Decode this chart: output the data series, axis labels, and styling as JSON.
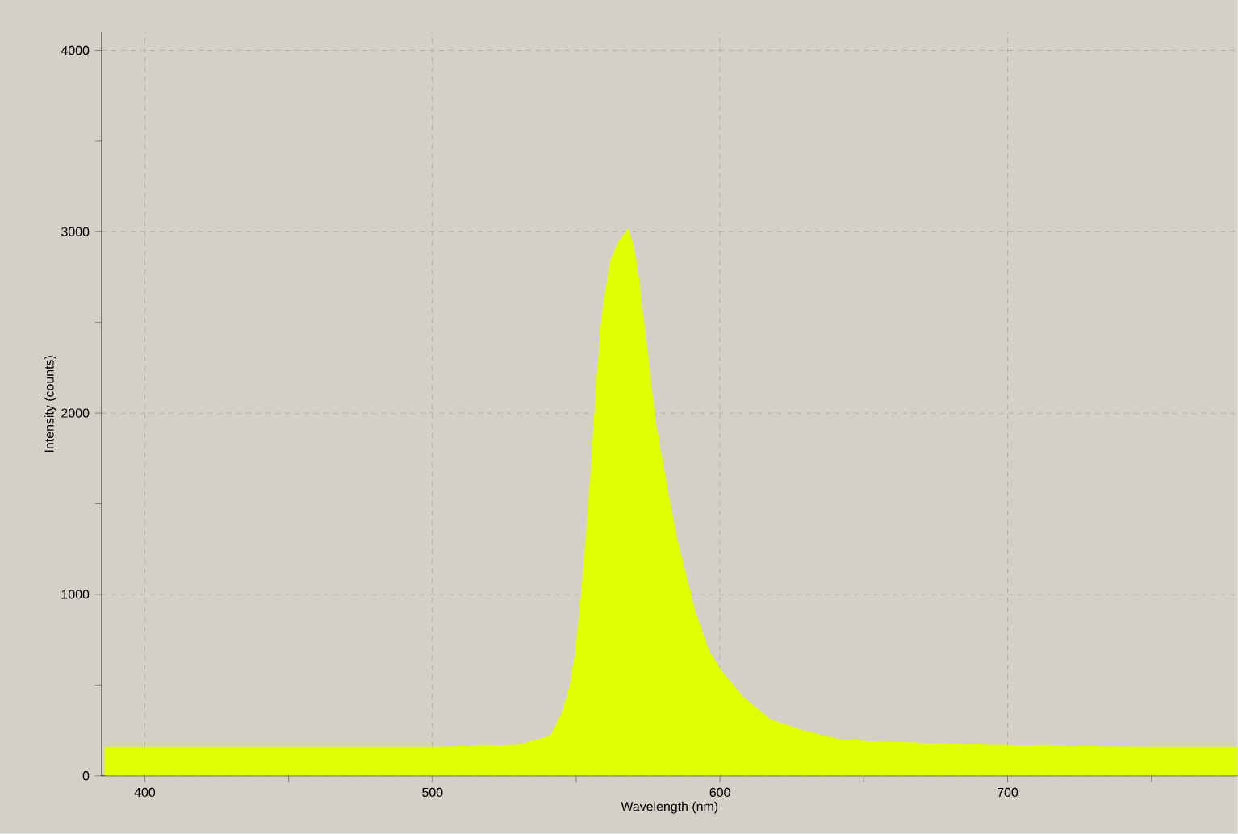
{
  "chart_data": {
    "type": "area",
    "xlabel": "Wavelength (nm)",
    "ylabel": "Intensity (counts)",
    "x": [
      386,
      400,
      450,
      500,
      530,
      541.0,
      544.8,
      547.5,
      549.4,
      551.3,
      553.2,
      555.1,
      556.9,
      558.8,
      561.6,
      564.4,
      568.1,
      570.1,
      571.9,
      573.8,
      575.7,
      577.5,
      579.4,
      582.2,
      585.0,
      587.8,
      591.6,
      596.2,
      601.0,
      608.4,
      617.8,
      629.0,
      642.1,
      652,
      675,
      693.5,
      720,
      750,
      780
    ],
    "values": [
      160,
      160,
      160,
      160,
      170,
      220,
      340,
      480,
      660,
      930,
      1290,
      1700,
      2150,
      2530,
      2830,
      2940,
      3020,
      2920,
      2740,
      2480,
      2240,
      1970,
      1790,
      1550,
      1320,
      1140,
      900,
      690,
      570,
      430,
      310,
      250,
      200,
      190,
      180,
      170,
      165,
      160,
      160
    ],
    "color": "#e0ff00",
    "xlim": [
      385,
      780
    ],
    "ylim": [
      0,
      4100
    ],
    "xticks": [
      400,
      {
        "value": 450,
        "label": null
      },
      500,
      {
        "value": 550,
        "label": null
      },
      600,
      {
        "value": 650,
        "label": null
      },
      700,
      {
        "value": 750,
        "label": null
      }
    ],
    "yticks": [
      0,
      {
        "value": 500,
        "label": null
      },
      1000,
      {
        "value": 1500,
        "label": null
      },
      2000,
      {
        "value": 2500,
        "label": null
      },
      3000,
      {
        "value": 3500,
        "label": null
      },
      4000
    ],
    "grid": true
  }
}
